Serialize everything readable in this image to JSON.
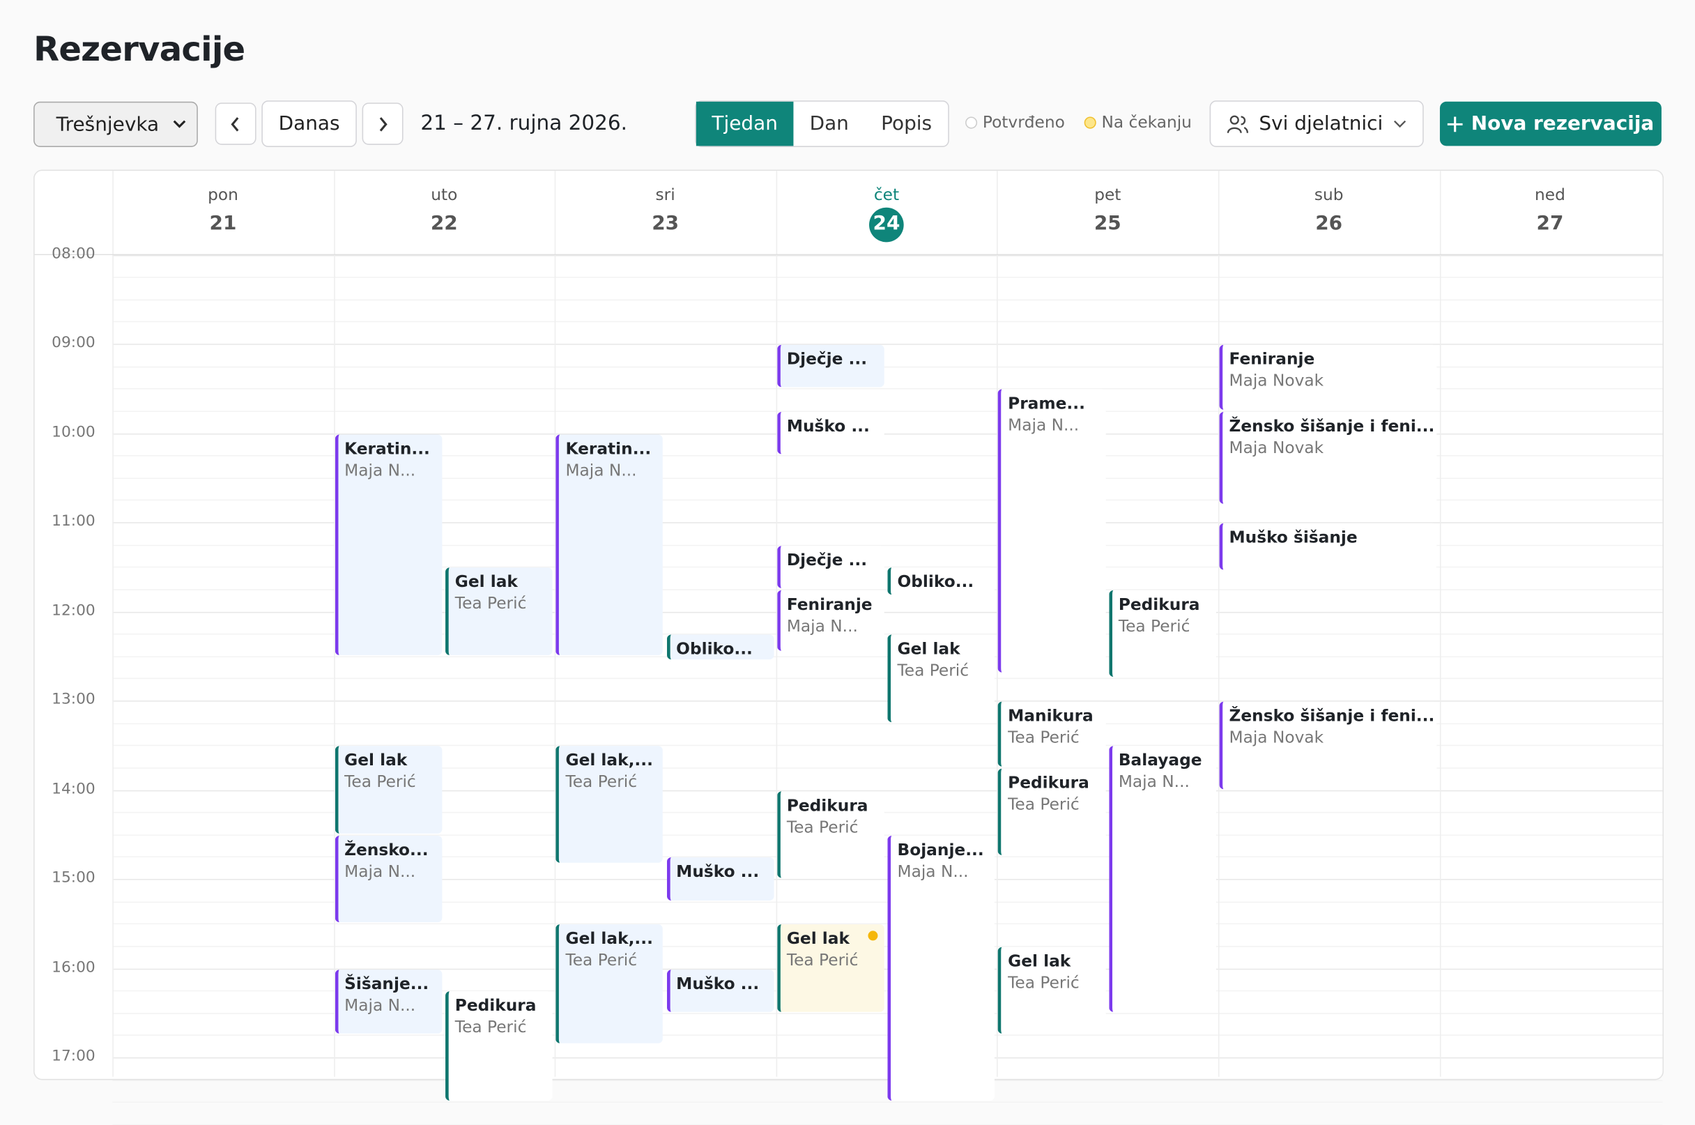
{
  "header": {
    "title": "Rezervacije"
  },
  "toolbar": {
    "location": "Trešnjevka",
    "today_button": "Danas",
    "date_range": "21 – 27. rujna 2026.",
    "views": [
      "Tjedan",
      "Dan",
      "Popis"
    ],
    "legend": [
      "Potvrđeno",
      "Na čekanju"
    ],
    "staff_filter": "Svi djelatnici",
    "new_button": "Nova rezervacija"
  },
  "calendar": {
    "days": [
      {
        "name": "pon",
        "number": "21"
      },
      {
        "name": "uto",
        "number": "22"
      },
      {
        "name": "sri",
        "number": "23"
      },
      {
        "name": "čet",
        "number": "24"
      },
      {
        "name": "pet",
        "number": "25"
      },
      {
        "name": "sub",
        "number": "26"
      },
      {
        "name": "ned",
        "number": "27"
      }
    ],
    "times": [
      "08:00",
      "09:00",
      "10:00",
      "11:00",
      "12:00",
      "13:00",
      "14:00",
      "15:00",
      "16:00",
      "17:00"
    ],
    "events": [
      {
        "title": "Keratin...",
        "staff": "Maja N..."
      },
      {
        "title": "Gel lak",
        "staff": "Tea Perić"
      },
      {
        "title": "Gel lak",
        "staff": "Tea Perić"
      },
      {
        "title": "Žensko...",
        "staff": "Maja N..."
      },
      {
        "title": "Šišanje...",
        "staff": "Maja N..."
      },
      {
        "title": "Pedikura",
        "staff": "Tea Perić"
      },
      {
        "title": "Keratin...",
        "staff": "Maja N..."
      },
      {
        "title": "Obliko..."
      },
      {
        "title": "Gel lak,...",
        "staff": "Tea Perić"
      },
      {
        "title": "Muško ..."
      },
      {
        "title": "Gel lak,...",
        "staff": "Tea Perić"
      },
      {
        "title": "Muško ..."
      },
      {
        "title": "Dječje ..."
      },
      {
        "title": "Muško ..."
      },
      {
        "title": "Dječje ..."
      },
      {
        "title": "Feniranje",
        "staff": "Maja N..."
      },
      {
        "title": "Obliko..."
      },
      {
        "title": "Gel lak",
        "staff": "Tea Perić"
      },
      {
        "title": "Pedikura",
        "staff": "Tea Perić"
      },
      {
        "title": "Gel lak",
        "staff": "Tea Perić"
      },
      {
        "title": "Bojanje...",
        "staff": "Maja N..."
      },
      {
        "title": "Prame...",
        "staff": "Maja N..."
      },
      {
        "title": "Manikura",
        "staff": "Tea Perić"
      },
      {
        "title": "Pedikura",
        "staff": "Tea Perić"
      },
      {
        "title": "Gel lak",
        "staff": "Tea Perić"
      },
      {
        "title": "Pedikura",
        "staff": "Tea Perić"
      },
      {
        "title": "Balayage",
        "staff": "Maja N..."
      },
      {
        "title": "Feniranje",
        "staff": "Maja Novak"
      },
      {
        "title": "Žensko šišanje i feni...",
        "staff": "Maja Novak"
      },
      {
        "title": "Muško šišanje"
      },
      {
        "title": "Žensko šišanje i feni...",
        "staff": "Maja Novak"
      }
    ]
  }
}
